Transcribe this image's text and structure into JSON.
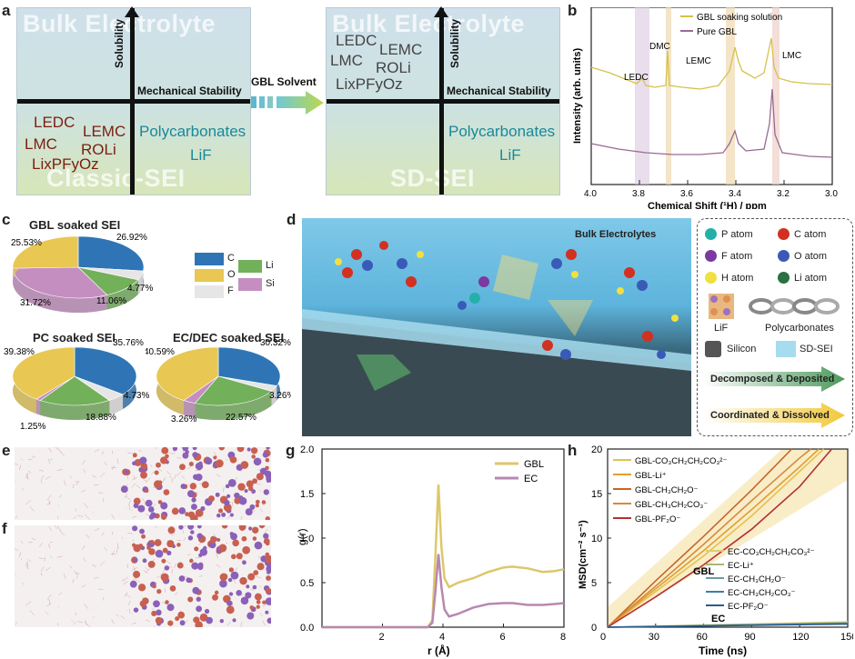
{
  "panels": {
    "a": "a",
    "b": "b",
    "c": "c",
    "d": "d",
    "e": "e",
    "f": "f",
    "g": "g",
    "h": "h"
  },
  "panel_a": {
    "left": {
      "title_top": "Bulk Electrolyte",
      "title_bottom": "Classic-SEI",
      "y_axis": "Solubility",
      "x_axis": "Mechanical Stability",
      "red_items": [
        "LEDC",
        "LEMC",
        "LMC",
        "ROLi",
        "LixPFyOz"
      ],
      "teal_items": [
        "Polycarbonates",
        "LiF"
      ]
    },
    "arrow_label": "GBL Solvent",
    "right": {
      "title_top": "Bulk Electrolyte",
      "title_bottom": "SD-SEI",
      "y_axis": "Solubility",
      "x_axis": "Mechanical Stability",
      "grey_items": [
        "LEDC",
        "LEMC",
        "LMC",
        "ROLi",
        "LixPFyOz"
      ],
      "teal_items": [
        "Polycarbonates",
        "LiF"
      ]
    }
  },
  "chart_data": [
    {
      "panel": "b",
      "type": "line",
      "xlabel": "Chemical Shift (¹H) / ppm",
      "ylabel": "Intensity (arb. units)",
      "xlim": [
        4.0,
        3.0
      ],
      "xticks": [
        "4.0",
        "3.8",
        "3.6",
        "3.4",
        "3.2",
        "3.0"
      ],
      "series": [
        {
          "name": "GBL soaking solution",
          "color": "#d6c24a"
        },
        {
          "name": "Pure GBL",
          "color": "#9a6a93"
        }
      ],
      "annotations": [
        "LEDC",
        "DMC",
        "LEMC",
        "LMC"
      ]
    },
    {
      "panel": "c",
      "type": "pie",
      "charts": [
        {
          "title": "GBL soaked SEI",
          "slices": [
            {
              "label": "C",
              "value": 26.92
            },
            {
              "label": "F",
              "value": 4.77
            },
            {
              "label": "Li",
              "value": 11.06
            },
            {
              "label": "Si",
              "value": 31.72
            },
            {
              "label": "O",
              "value": 25.53
            }
          ],
          "labels": [
            "26.92%",
            "4.77%",
            "11.06%",
            "31.72%",
            "25.53%"
          ]
        },
        {
          "title": "PC soaked SEI",
          "slices": [
            {
              "label": "C",
              "value": 35.76
            },
            {
              "label": "F",
              "value": 4.73
            },
            {
              "label": "Li",
              "value": 18.88
            },
            {
              "label": "Si",
              "value": 1.25
            },
            {
              "label": "O",
              "value": 39.38
            }
          ],
          "labels": [
            "35.76%",
            "4.73%",
            "18.88%",
            "1.25%",
            "39.38%"
          ]
        },
        {
          "title": "EC/DEC soaked SEI",
          "slices": [
            {
              "label": "C",
              "value": 30.32
            },
            {
              "label": "F",
              "value": 3.26
            },
            {
              "label": "Li",
              "value": 22.57
            },
            {
              "label": "Si",
              "value": 3.26
            },
            {
              "label": "O",
              "value": 40.59
            }
          ],
          "labels": [
            "30.32%",
            "3.26%",
            "22.57%",
            "3.26%",
            "40.59%"
          ]
        }
      ],
      "legend": [
        {
          "label": "C",
          "color": "#2f75b5"
        },
        {
          "label": "Li",
          "color": "#73b05a"
        },
        {
          "label": "O",
          "color": "#e8c752"
        },
        {
          "label": "Si",
          "color": "#c48ec0"
        },
        {
          "label": "F",
          "color": "#e6e6e6"
        }
      ]
    },
    {
      "panel": "g",
      "type": "line",
      "xlabel": "r (Å)",
      "ylabel": "g(r)",
      "xlim": [
        0,
        8
      ],
      "ylim": [
        0,
        2.0
      ],
      "xticks": [
        "2",
        "4",
        "6",
        "8"
      ],
      "yticks": [
        "0.0",
        "0.5",
        "1.0",
        "1.5",
        "2.0"
      ],
      "series": [
        {
          "name": "GBL",
          "color": "#dcc86a",
          "x": [
            0,
            3.5,
            3.65,
            3.75,
            3.85,
            3.95,
            4.05,
            4.2,
            4.5,
            5.0,
            5.5,
            6.0,
            6.3,
            6.8,
            7.3,
            7.7,
            8.0
          ],
          "y": [
            0,
            0,
            0.08,
            0.8,
            1.6,
            0.9,
            0.55,
            0.45,
            0.5,
            0.55,
            0.62,
            0.67,
            0.68,
            0.66,
            0.62,
            0.63,
            0.65
          ]
        },
        {
          "name": "EC",
          "color": "#b888b0",
          "x": [
            0,
            3.5,
            3.65,
            3.75,
            3.85,
            3.95,
            4.05,
            4.2,
            4.5,
            5.0,
            5.5,
            6.0,
            6.3,
            6.8,
            7.3,
            7.7,
            8.0
          ],
          "y": [
            0,
            0,
            0.05,
            0.4,
            0.82,
            0.45,
            0.2,
            0.12,
            0.15,
            0.22,
            0.26,
            0.27,
            0.27,
            0.25,
            0.25,
            0.26,
            0.27
          ]
        }
      ]
    },
    {
      "panel": "h",
      "type": "line",
      "xlabel": "Time (ns)",
      "ylabel": "MSD(cm⁻² s⁻¹)",
      "xlim": [
        0,
        150
      ],
      "ylim": [
        0,
        20
      ],
      "xticks": [
        "0",
        "30",
        "60",
        "90",
        "120",
        "150"
      ],
      "yticks": [
        "0",
        "5",
        "10",
        "15",
        "20"
      ],
      "series": [
        {
          "name": "GBL-CO₃CH₂CH₂CO₃²⁻",
          "color": "#e8c050",
          "x": [
            0,
            30,
            60,
            90,
            120,
            135
          ],
          "y": [
            0,
            4,
            8,
            12.5,
            17.5,
            20
          ]
        },
        {
          "name": "GBL-Li⁺",
          "color": "#e0a030",
          "x": [
            0,
            30,
            60,
            90,
            120,
            132
          ],
          "y": [
            0,
            4.3,
            8.6,
            13.2,
            18,
            20
          ]
        },
        {
          "name": "GBL-CH₃CH₂O⁻",
          "color": "#c86428",
          "x": [
            0,
            30,
            60,
            90,
            115
          ],
          "y": [
            0,
            5.2,
            10.2,
            15.4,
            20
          ]
        },
        {
          "name": "GBL-CH₃CH₂CO₃⁻",
          "color": "#d58a3a",
          "x": [
            0,
            30,
            60,
            90,
            120,
            127
          ],
          "y": [
            0,
            4.6,
            9.3,
            14.2,
            19,
            20
          ]
        },
        {
          "name": "GBL-PF₂O⁻",
          "color": "#b43030",
          "x": [
            0,
            30,
            60,
            90,
            120,
            140
          ],
          "y": [
            0,
            3.4,
            7,
            11,
            15.8,
            20
          ]
        },
        {
          "name": "EC-CO₃CH₂CH₂CO₃²⁻",
          "color": "#d8d070",
          "x": [
            0,
            150
          ],
          "y": [
            0,
            0.6
          ]
        },
        {
          "name": "EC-Li⁺",
          "color": "#a8b878",
          "x": [
            0,
            150
          ],
          "y": [
            0,
            0.5
          ]
        },
        {
          "name": "EC-CH₃CH₂O⁻",
          "color": "#6e9aa8",
          "x": [
            0,
            150
          ],
          "y": [
            0,
            0.45
          ]
        },
        {
          "name": "EC-CH₃CH₂CO₃⁻",
          "color": "#3d7fa8",
          "x": [
            0,
            150
          ],
          "y": [
            0,
            0.4
          ]
        },
        {
          "name": "EC-PF₂O⁻",
          "color": "#2a5d8a",
          "x": [
            0,
            150
          ],
          "y": [
            0,
            0.35
          ]
        }
      ],
      "annotations": [
        "GBL",
        "EC"
      ]
    }
  ],
  "panel_d": {
    "title": "Bulk Electrolytes",
    "legend": [
      {
        "label": "P atom",
        "color": "#24b0a8"
      },
      {
        "label": "C atom",
        "color": "#d23020"
      },
      {
        "label": "F atom",
        "color": "#7a3aa0"
      },
      {
        "label": "O atom",
        "color": "#3a5ab8"
      },
      {
        "label": "H atom",
        "color": "#f0e040"
      },
      {
        "label": "Li atom",
        "color": "#2a7040"
      }
    ],
    "icons": [
      {
        "label": "LiF"
      },
      {
        "label": "Polycarbonates"
      },
      {
        "label": "Silicon"
      },
      {
        "label": "SD-SEI"
      }
    ],
    "arrows": [
      "Decomposed & Deposited",
      "Coordinated & Dissolved"
    ]
  }
}
